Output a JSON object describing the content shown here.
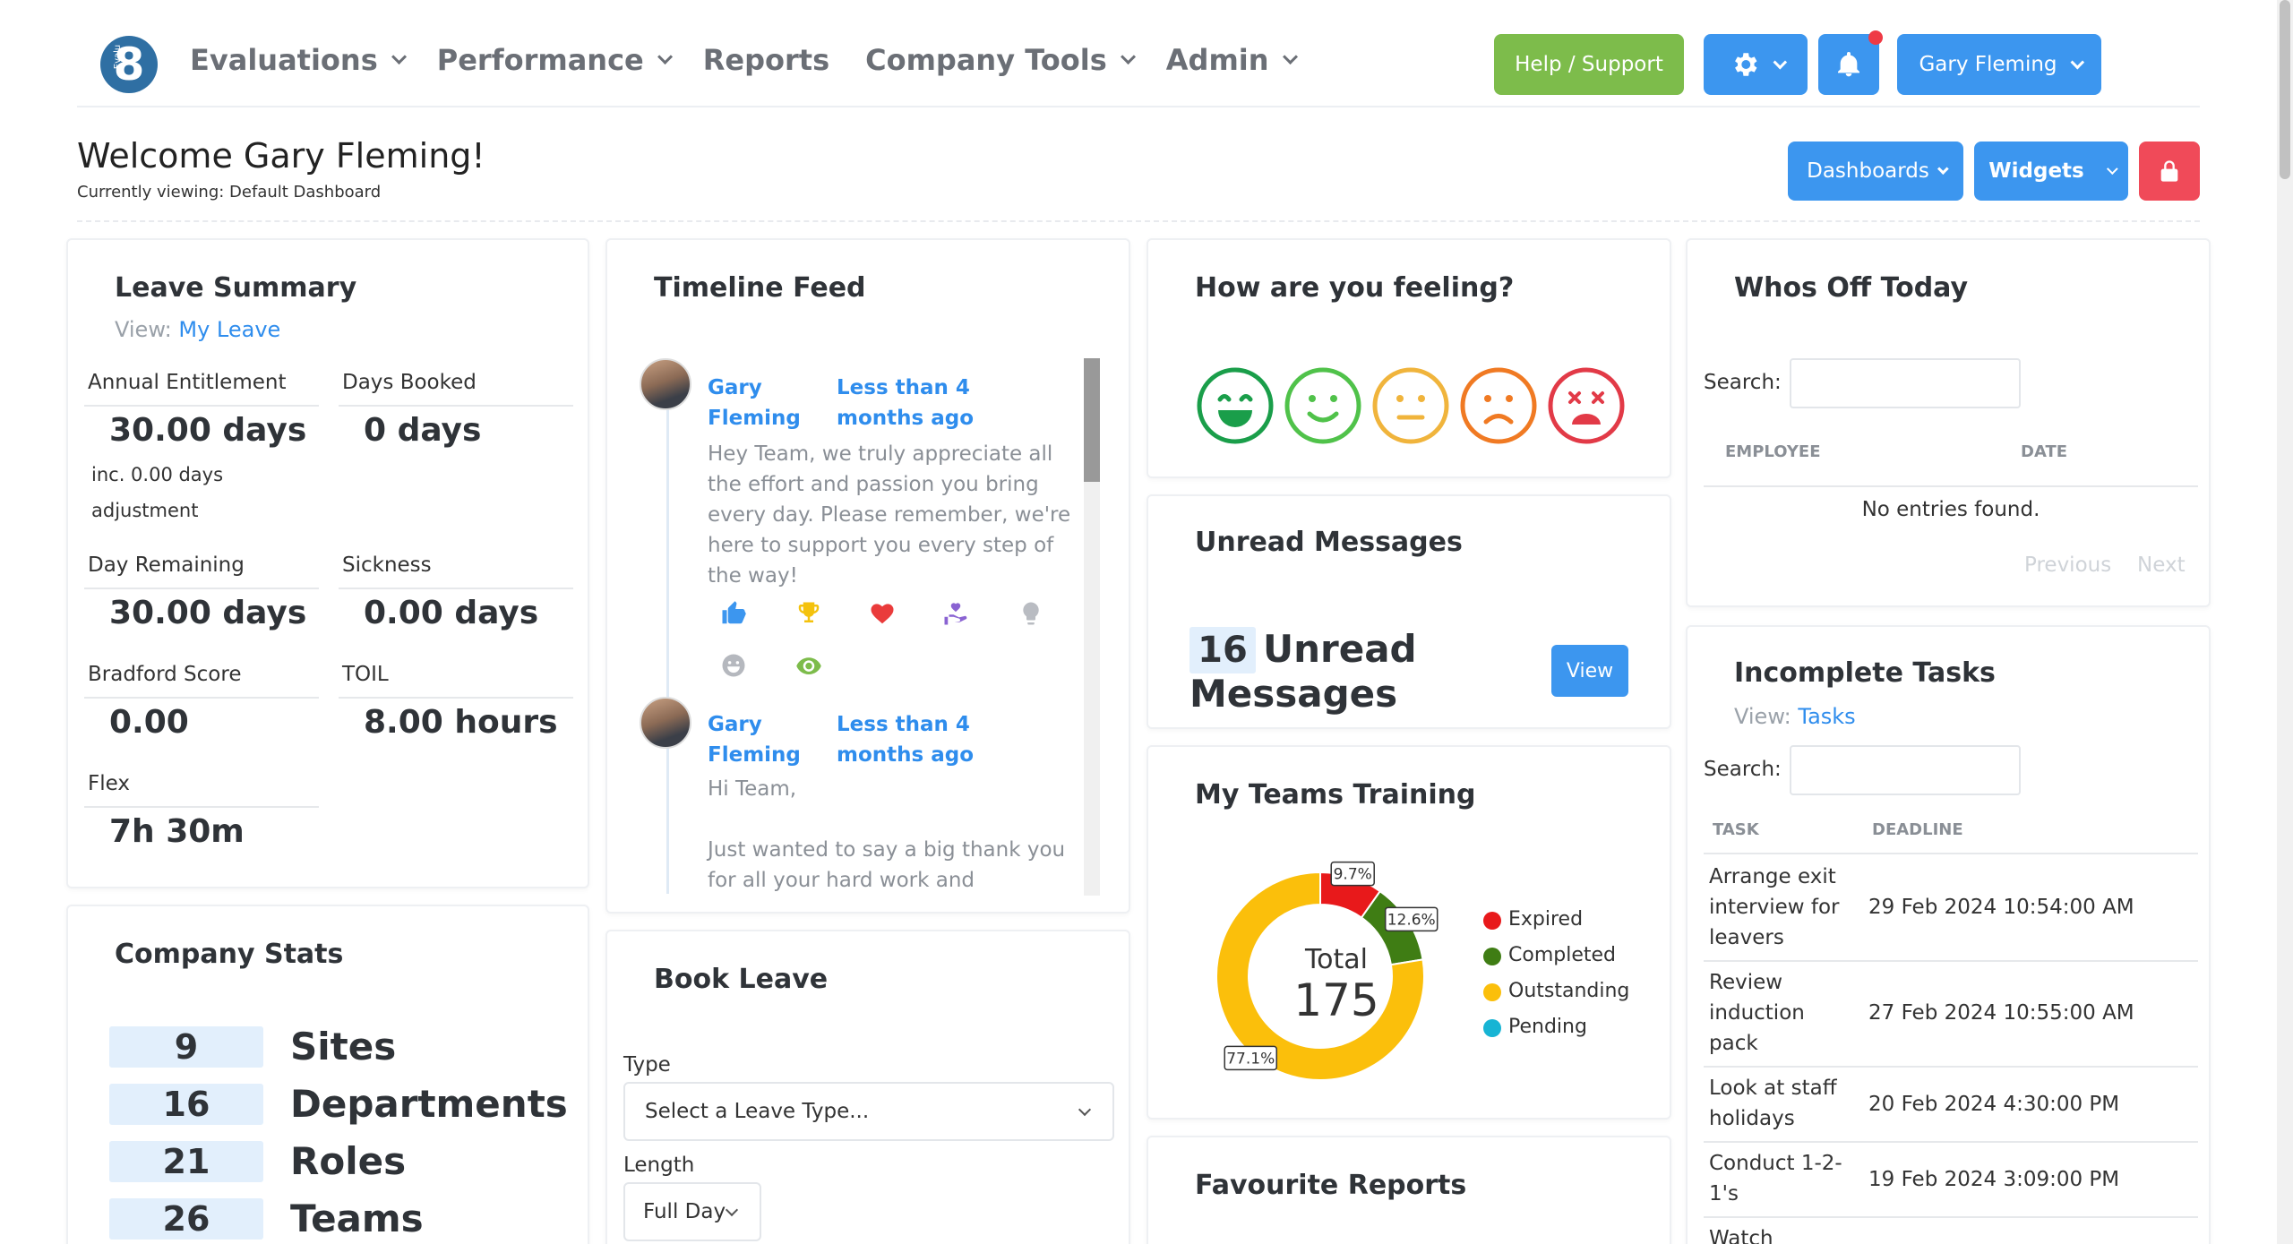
{
  "nav": {
    "logo_text": "Evalu8",
    "items": [
      {
        "label": "Evaluations",
        "dropdown": true
      },
      {
        "label": "Performance",
        "dropdown": true
      },
      {
        "label": "Reports",
        "dropdown": false
      },
      {
        "label": "Company Tools",
        "dropdown": true
      },
      {
        "label": "Admin",
        "dropdown": true
      }
    ],
    "help_label": "Help / Support",
    "user_label": "Gary Fleming"
  },
  "welcome": {
    "title": "Welcome Gary Fleming!",
    "subtitle": "Currently viewing: Default Dashboard",
    "dashboards_label": "Dashboards",
    "widgets_label": "Widgets"
  },
  "leave_summary": {
    "title": "Leave Summary",
    "view_prefix": "View:",
    "view_link": "My Leave",
    "annual_label": "Annual Entitlement",
    "annual_value": "30.00 days",
    "annual_note1": "inc. 0.00 days",
    "annual_note2": "adjustment",
    "booked_label": "Days Booked",
    "booked_value": "0 days",
    "remaining_label": "Day Remaining",
    "remaining_value": "30.00 days",
    "sickness_label": "Sickness",
    "sickness_value": "0.00 days",
    "bradford_label": "Bradford Score",
    "bradford_value": "0.00",
    "toil_label": "TOIL",
    "toil_value": "8.00 hours",
    "flex_label": "Flex",
    "flex_value": "7h 30m"
  },
  "company_stats": {
    "title": "Company Stats",
    "rows": [
      {
        "num": "9",
        "label": "Sites"
      },
      {
        "num": "16",
        "label": "Departments"
      },
      {
        "num": "21",
        "label": "Roles"
      },
      {
        "num": "26",
        "label": "Teams"
      }
    ]
  },
  "timeline": {
    "title": "Timeline Feed",
    "posts": [
      {
        "name": "Gary Fleming",
        "time": "Less than 4 months ago",
        "text": "Hey Team, we truly appreciate all the effort and passion you bring every day. Please remember, we're here to support you every step of the way!"
      },
      {
        "name": "Gary Fleming",
        "time": "Less than 4 months ago",
        "text1": "Hi Team,",
        "text2": "Just wanted to say a big thank you for all your hard work and"
      }
    ],
    "reactions": [
      "thumbs-up-icon",
      "trophy-icon",
      "heart-icon",
      "helping-hand-icon",
      "lightbulb-icon",
      "grin-icon",
      "eye-icon"
    ]
  },
  "book_leave": {
    "title": "Book Leave",
    "type_label": "Type",
    "type_placeholder": "Select a Leave Type...",
    "length_label": "Length",
    "length_value": "Full Day"
  },
  "feeling": {
    "title": "How are you feeling?",
    "faces": [
      "very-happy-face-icon",
      "happy-face-icon",
      "neutral-face-icon",
      "sad-face-icon",
      "very-sad-face-icon"
    ]
  },
  "unread": {
    "title": "Unread Messages",
    "count": "16",
    "line1": "Unread",
    "line2": "Messages",
    "view_label": "View"
  },
  "training": {
    "title": "My Teams Training",
    "total_label": "Total",
    "total_value": "175"
  },
  "chart_data": {
    "type": "pie",
    "title": "My Teams Training",
    "categories": [
      "Expired",
      "Completed",
      "Outstanding",
      "Pending"
    ],
    "values": [
      9.7,
      12.6,
      77.1,
      0
    ],
    "value_labels": [
      "9.7%",
      "12.6%",
      "77.1%",
      ""
    ],
    "colors": [
      "#e8191b",
      "#3f7d14",
      "#fbbf0b",
      "#17b4d4"
    ],
    "legend": "right"
  },
  "favourite_reports": {
    "title": "Favourite Reports"
  },
  "whos_off": {
    "title": "Whos Off Today",
    "search_label": "Search:",
    "col_employee": "EMPLOYEE",
    "col_date": "DATE",
    "empty": "No entries found.",
    "prev": "Previous",
    "next": "Next"
  },
  "tasks": {
    "title": "Incomplete Tasks",
    "view_prefix": "View:",
    "view_link": "Tasks",
    "search_label": "Search:",
    "col_task": "TASK",
    "col_deadline": "DEADLINE",
    "rows": [
      {
        "task1": "Arrange exit",
        "task2": "interview for",
        "task3": "leavers",
        "deadline": "29 Feb 2024 10:54:00 AM"
      },
      {
        "task1": "Review",
        "task2": "induction",
        "task3": "pack",
        "deadline": "27 Feb 2024 10:55:00 AM"
      },
      {
        "task1": "Look at staff",
        "task2": "holidays",
        "task3": "",
        "deadline": "20 Feb 2024 4:30:00 PM"
      },
      {
        "task1": "Conduct 1-2-",
        "task2": "1's",
        "task3": "",
        "deadline": "19 Feb 2024 3:09:00 PM"
      },
      {
        "task1": "Watch",
        "task2": "",
        "task3": "",
        "deadline": ""
      }
    ]
  }
}
